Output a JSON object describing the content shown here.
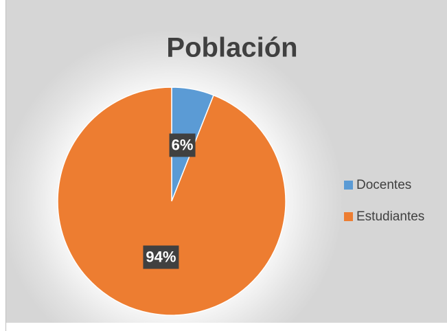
{
  "chart_data": {
    "type": "pie",
    "title": "Población",
    "categories": [
      "Docentes",
      "Estudiantes"
    ],
    "values": [
      6,
      94
    ],
    "value_labels": [
      "6%",
      "94%"
    ],
    "colors": [
      "#5b9bd5",
      "#ed7d31"
    ],
    "legend": "right"
  }
}
